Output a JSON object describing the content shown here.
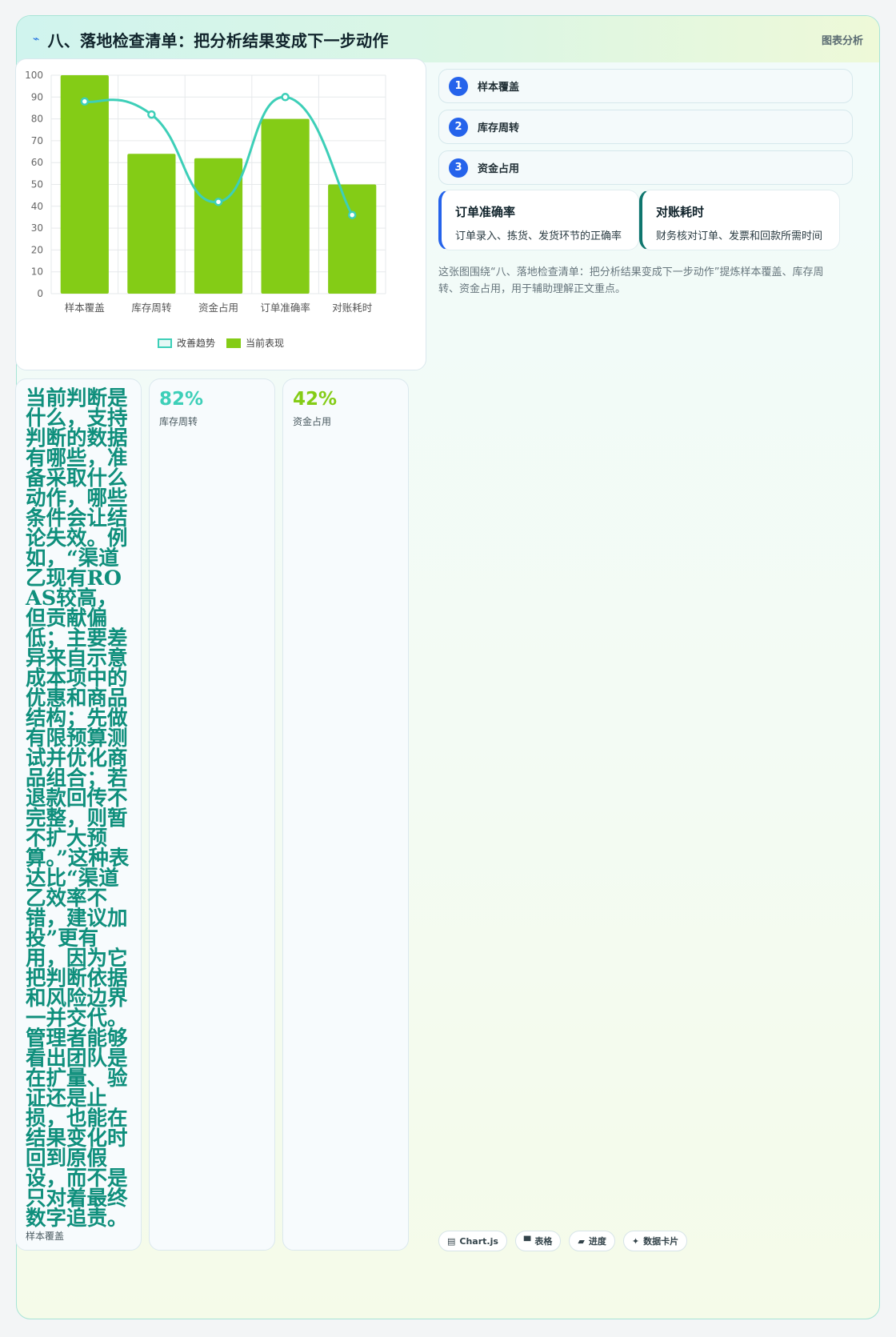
{
  "header": {
    "icon": "sparkline-icon",
    "title": "八、落地检查清单：把分析结果变成下一步动作",
    "tag": "图表分析"
  },
  "chart_data": {
    "type": "bar",
    "categories": [
      "样本覆盖",
      "库存周转",
      "资金占用",
      "订单准确率",
      "对账耗时"
    ],
    "series": [
      {
        "name": "改善趋势",
        "kind": "line",
        "color": "#3dcfb8",
        "values": [
          88,
          82,
          42,
          90,
          36
        ]
      },
      {
        "name": "当前表现",
        "kind": "bar",
        "color": "#84cc16",
        "values": [
          100,
          64,
          62,
          80,
          50
        ]
      }
    ],
    "ylim": [
      0,
      100
    ],
    "yticks": [
      0,
      10,
      20,
      30,
      40,
      50,
      60,
      70,
      80,
      90,
      100
    ],
    "grid": true,
    "legend": "bottom"
  },
  "steps": [
    {
      "num": "1",
      "label": "样本覆盖"
    },
    {
      "num": "2",
      "label": "库存周转"
    },
    {
      "num": "3",
      "label": "资金占用"
    }
  ],
  "definitions": [
    {
      "title": "订单准确率",
      "desc": "订单录入、拣货、发货环节的正确率"
    },
    {
      "title": "对账耗时",
      "desc": "财务核对订单、发票和回款所需时间"
    }
  ],
  "caption": "这张图围绕“八、落地检查清单：把分析结果变成下一步动作”提炼样本覆盖、库存周转、资金占用，用于辅助理解正文重点。",
  "columns": {
    "text": "当前判断是什么，支持判断的数据有哪些，准备采取什么动作，哪些条件会让结论失效。例如，“渠道乙现有ROAS较高，但贡献偏低；主要差异来自示意成本项中的优惠和商品结构；先做有限预算测试并优化商品组合；若退款回传不完整，则暂不扩大预算。”这种表达比“渠道乙效率不错，建议加投”更有用，因为它把判断依据和风险边界一并交代。管理者能够看出团队是在扩量、验证还是止损，也能在结果变化时回到原假设，而不是只对着最终数字追责。",
    "text_footer": "样本覆盖",
    "kpis": [
      {
        "value": "82%",
        "label": "库存周转",
        "color": "#3dcfb8"
      },
      {
        "value": "42%",
        "label": "资金占用",
        "color": "#84cc16"
      }
    ]
  },
  "badges": [
    {
      "icon": "chart-icon",
      "glyph": "▤",
      "label": "Chart.js"
    },
    {
      "icon": "table-icon",
      "glyph": "▀",
      "label": "表格"
    },
    {
      "icon": "progress-icon",
      "glyph": "▰",
      "label": "进度"
    },
    {
      "icon": "card-icon",
      "glyph": "✦",
      "label": "数据卡片"
    }
  ]
}
